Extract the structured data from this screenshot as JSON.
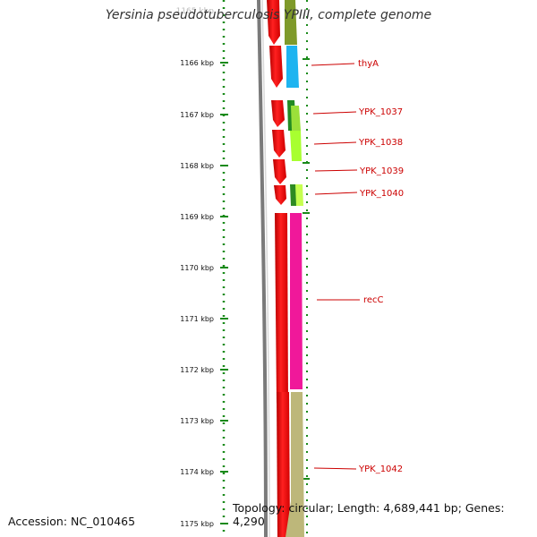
{
  "title": "Yersinia pseudotuberculosis YPIII, complete genome",
  "footer": {
    "accession": "Accession: NC_010465",
    "topology": "Topology: circular; Length: 4,689,441 bp; Genes: 4,290"
  },
  "ruler": {
    "unit": "kbp",
    "ticks": [
      1166,
      1167,
      1168,
      1169,
      1170,
      1171,
      1172,
      1173,
      1174,
      1175
    ],
    "top_partial": "1165 kbp"
  },
  "colors": {
    "backbone": "#7a7a7a",
    "forward_strand": "#ff0000",
    "tick": "#1a8a1a",
    "label": "#cc0000"
  },
  "genes": [
    {
      "name": "",
      "color": "#7f9a2a"
    },
    {
      "name": "thyA",
      "color": "#1eb4f0"
    },
    {
      "name": "YPK_1037",
      "color": "#228b22"
    },
    {
      "name": "YPK_1038",
      "color": "#a8ff30"
    },
    {
      "name": "YPK_1039",
      "color": ""
    },
    {
      "name": "YPK_1040",
      "color": "#7cd428"
    },
    {
      "name": "recC",
      "color": "#f0189a"
    },
    {
      "name": "YPK_1042",
      "color": "#bdb77a"
    }
  ]
}
